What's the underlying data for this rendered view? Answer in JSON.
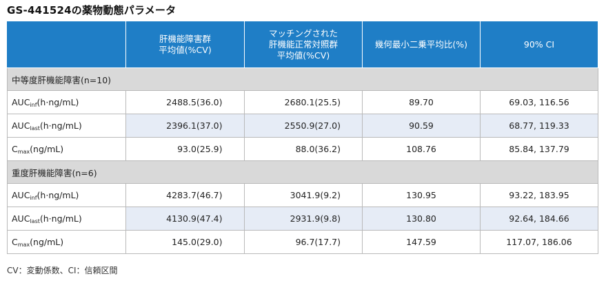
{
  "title": "GS-441524の薬物動態パラメータ",
  "header": {
    "col1": [
      "肝機能障害群",
      "平均値(%CV)"
    ],
    "col2": [
      "マッチングされた",
      "肝機能正常対照群",
      "平均値(%CV)"
    ],
    "col3": "幾何最小二乗平均比(%)",
    "col4": "90% CI"
  },
  "sections": [
    {
      "label": "中等度肝機能障害(n=10)",
      "rows": [
        {
          "param": "AUC",
          "sub": "inf",
          "unit": "(h·ng/mL)",
          "impaired": "2488.5(36.0)",
          "control": "2680.1(25.5)",
          "ratio": "89.70",
          "ci": "69.03, 116.56",
          "shaded": false
        },
        {
          "param": "AUC",
          "sub": "last",
          "unit": "(h·ng/mL)",
          "impaired": "2396.1(37.0)",
          "control": "2550.9(27.0)",
          "ratio": "90.59",
          "ci": "68.77, 119.33",
          "shaded": true
        },
        {
          "param": "C",
          "sub": "max",
          "unit": "(ng/mL)",
          "impaired": "93.0(25.9)",
          "control": "88.0(36.2)",
          "ratio": "108.76",
          "ci": "85.84, 137.79",
          "shaded": false
        }
      ]
    },
    {
      "label": "重度肝機能障害(n=6)",
      "rows": [
        {
          "param": "AUC",
          "sub": "inf",
          "unit": "(h·ng/mL)",
          "impaired": "4283.7(46.7)",
          "control": "3041.9(9.2)",
          "ratio": "130.95",
          "ci": "93.22, 183.95",
          "shaded": false
        },
        {
          "param": "AUC",
          "sub": "last",
          "unit": "(h·ng/mL)",
          "impaired": "4130.9(47.4)",
          "control": "2931.9(9.8)",
          "ratio": "130.80",
          "ci": "92.64, 184.66",
          "shaded": true
        },
        {
          "param": "C",
          "sub": "max",
          "unit": "(ng/mL)",
          "impaired": "145.0(29.0)",
          "control": "96.7(17.7)",
          "ratio": "147.59",
          "ci": "117.07, 186.06",
          "shaded": false
        }
      ]
    }
  ],
  "footnote": "CV：変動係数、CI：信頼区間",
  "colors": {
    "header_bg": "#1f7ec6",
    "section_bg": "#d9d9d9",
    "shaded_row_bg": "#e6ecf6"
  }
}
